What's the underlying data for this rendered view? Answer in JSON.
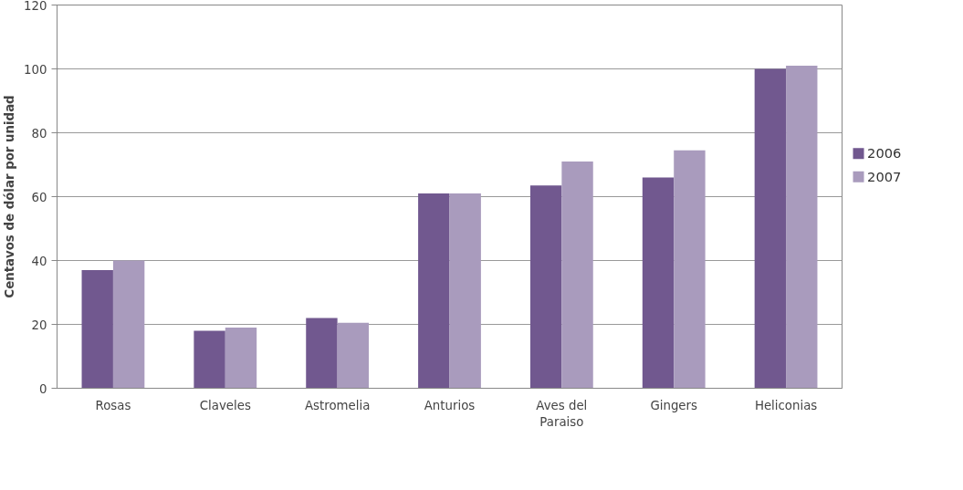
{
  "chart_data": {
    "type": "bar",
    "ylabel": "Centavos de dólar por unidad",
    "categories": [
      "Rosas",
      "Claveles",
      "Astromelia",
      "Anturios",
      "Aves del Paraiso",
      "Gingers",
      "Heliconias"
    ],
    "series": [
      {
        "name": "2006",
        "color": "#71588f",
        "values": [
          37,
          18,
          22,
          61,
          63.5,
          66,
          100
        ]
      },
      {
        "name": "2007",
        "color": "#a99bbd",
        "values": [
          40,
          19,
          20.5,
          61,
          71,
          74.5,
          101
        ]
      }
    ],
    "ylim": [
      0,
      120
    ],
    "yticks": [
      0,
      20,
      40,
      60,
      80,
      100,
      120
    ],
    "grid": "y",
    "legend": "right"
  }
}
